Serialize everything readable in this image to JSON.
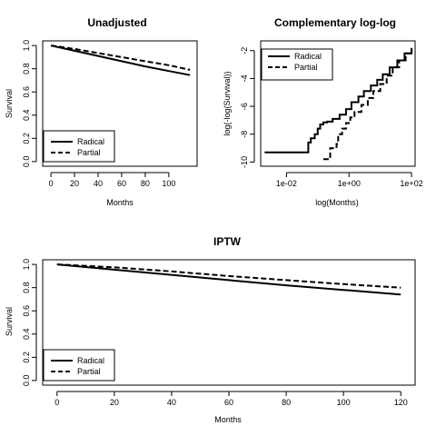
{
  "chart_data": [
    {
      "id": "unadjusted",
      "type": "line",
      "title": "Unadjusted",
      "xlabel": "Months",
      "ylabel": "Survival",
      "xlim": [
        0,
        120
      ],
      "ylim": [
        0,
        1
      ],
      "xticks": [
        0,
        20,
        40,
        60,
        80,
        100
      ],
      "yticks": [
        0.0,
        0.2,
        0.4,
        0.6,
        0.8,
        1.0
      ],
      "ytick_labels": [
        "0.0",
        "0.2",
        "0.4",
        "0.6",
        "0.8",
        "1.0"
      ],
      "grid": false,
      "legend_position": "bottom-left",
      "series": [
        {
          "name": "Radical",
          "line_style": "solid",
          "x": [
            0,
            20,
            40,
            60,
            80,
            100,
            118
          ],
          "y": [
            1.0,
            0.955,
            0.91,
            0.865,
            0.82,
            0.78,
            0.745
          ]
        },
        {
          "name": "Partial",
          "line_style": "dashed",
          "x": [
            0,
            20,
            40,
            60,
            80,
            100,
            118
          ],
          "y": [
            1.0,
            0.97,
            0.935,
            0.9,
            0.865,
            0.83,
            0.79
          ]
        }
      ]
    },
    {
      "id": "cloglog",
      "type": "line",
      "title": "Complementary log-log",
      "xlabel": "log(Months)",
      "ylabel": "log(-log(Survival))",
      "xscale": "log",
      "xlim": [
        0.0015,
        130
      ],
      "ylim": [
        -10,
        -1.5
      ],
      "xticks": [
        0.01,
        1,
        100
      ],
      "xtick_labels": [
        "1e-02",
        "1e+00",
        "1e+02"
      ],
      "yticks": [
        -10,
        -8,
        -6,
        -4,
        -2
      ],
      "ytick_labels": [
        "-10",
        "-8",
        "-6",
        "-4",
        "-2"
      ],
      "grid": false,
      "legend_position": "top-left",
      "series": [
        {
          "name": "Radical",
          "line_style": "solid",
          "step": true,
          "x": [
            0.002,
            0.05,
            0.05,
            0.06,
            0.08,
            0.1,
            0.12,
            0.15,
            0.2,
            0.3,
            0.5,
            0.8,
            1.2,
            2,
            3,
            5,
            8,
            12,
            20,
            35,
            60,
            100
          ],
          "y": [
            -9.3,
            -9.3,
            -8.6,
            -8.3,
            -8.0,
            -7.6,
            -7.3,
            -7.15,
            -7.1,
            -6.9,
            -6.6,
            -6.2,
            -5.7,
            -5.3,
            -4.9,
            -4.5,
            -4.1,
            -3.7,
            -3.2,
            -2.7,
            -2.2,
            -1.8
          ]
        },
        {
          "name": "Partial",
          "line_style": "dashed",
          "step": true,
          "x": [
            0.15,
            0.25,
            0.25,
            0.4,
            0.45,
            0.6,
            0.8,
            1.1,
            1.5,
            2.5,
            4,
            6,
            10,
            16,
            25,
            40,
            65,
            100
          ],
          "y": [
            -9.8,
            -9.8,
            -9.0,
            -8.7,
            -8.0,
            -7.6,
            -7.2,
            -6.8,
            -6.4,
            -5.9,
            -5.4,
            -4.9,
            -4.4,
            -3.8,
            -3.2,
            -2.7,
            -2.2,
            -1.9
          ]
        }
      ]
    },
    {
      "id": "iptw",
      "type": "line",
      "title": "IPTW",
      "xlabel": "Months",
      "ylabel": "Survival",
      "xlim": [
        0,
        120
      ],
      "ylim": [
        0,
        1
      ],
      "xticks": [
        0,
        20,
        40,
        60,
        80,
        100,
        120
      ],
      "yticks": [
        0.0,
        0.2,
        0.4,
        0.6,
        0.8,
        1.0
      ],
      "ytick_labels": [
        "0.0",
        "0.2",
        "0.4",
        "0.6",
        "0.8",
        "1.0"
      ],
      "grid": false,
      "legend_position": "bottom-left",
      "series": [
        {
          "name": "Radical",
          "line_style": "solid",
          "x": [
            0,
            20,
            40,
            60,
            80,
            100,
            120
          ],
          "y": [
            1.0,
            0.955,
            0.91,
            0.865,
            0.82,
            0.78,
            0.74
          ]
        },
        {
          "name": "Partial",
          "line_style": "dashed",
          "x": [
            0,
            20,
            40,
            60,
            80,
            100,
            120
          ],
          "y": [
            1.0,
            0.975,
            0.94,
            0.9,
            0.865,
            0.83,
            0.8
          ]
        }
      ]
    }
  ]
}
